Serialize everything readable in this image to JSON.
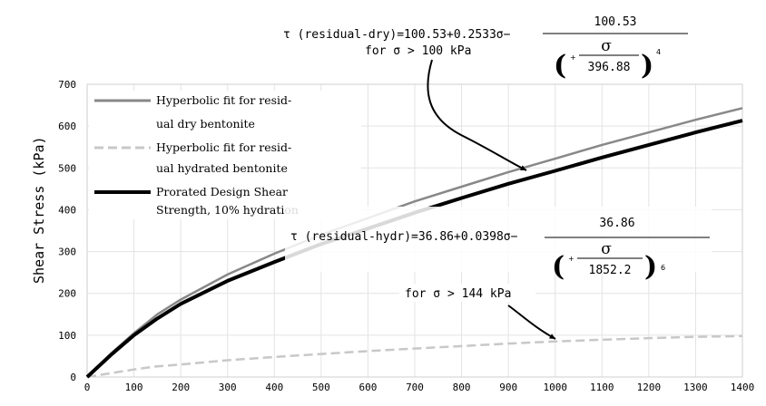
{
  "chart_data": {
    "type": "line",
    "title": "",
    "xlabel": "",
    "ylabel": "Shear Stress (kPa)",
    "xlim": [
      0,
      1400
    ],
    "ylim": [
      0,
      700
    ],
    "x_ticks": [
      "0",
      "100",
      "200",
      "300",
      "400",
      "500",
      "600",
      "700",
      "800",
      "900",
      "1000",
      "1100",
      "1200",
      "1300",
      "1400"
    ],
    "y_ticks": [
      "0",
      "100",
      "200",
      "300",
      "400",
      "500",
      "600",
      "700"
    ],
    "grid": true,
    "legend_position": "top-left",
    "legend": [
      "Hyperbolic fit for resid-",
      "ual dry bentonite",
      "Hyperbolic fit for resid-",
      "ual hydrated bentonite",
      "Prorated Design Shear",
      "Strength, 10% hydration"
    ],
    "series": [
      {
        "name": "Hyperbolic fit for residual dry bentonite",
        "color": "#888888",
        "style": "solid",
        "x": [
          0,
          50,
          100,
          150,
          200,
          300,
          400,
          500,
          600,
          700,
          800,
          900,
          1000,
          1100,
          1200,
          1300,
          1400
        ],
        "y": [
          0,
          55,
          105,
          150,
          185,
          245,
          295,
          340,
          380,
          420,
          455,
          490,
          522,
          555,
          585,
          615,
          643
        ]
      },
      {
        "name": "Hyperbolic fit for residual hydrated bentonite",
        "color": "#c8c8c8",
        "style": "dashed",
        "x": [
          0,
          100,
          144,
          200,
          300,
          400,
          500,
          600,
          700,
          800,
          900,
          1000,
          1100,
          1200,
          1300,
          1400
        ],
        "y": [
          0,
          18,
          25,
          30,
          40,
          48,
          55,
          62,
          68,
          74,
          80,
          85,
          89,
          93,
          96,
          98
        ]
      },
      {
        "name": "Prorated Design Shear Strength, 10% hydration",
        "color": "#000000",
        "style": "solid",
        "x": [
          0,
          50,
          100,
          150,
          200,
          300,
          400,
          500,
          600,
          700,
          800,
          900,
          1000,
          1100,
          1200,
          1300,
          1400
        ],
        "y": [
          0,
          52,
          100,
          140,
          175,
          230,
          275,
          318,
          355,
          393,
          428,
          462,
          493,
          525,
          555,
          585,
          613
        ]
      }
    ],
    "annotations": {
      "dry": {
        "equation_lhs": "τ (residual-dry)=100.53+0.2533σ−",
        "numerator": "100.53",
        "plus": "+",
        "sigma": "σ",
        "denominator": "396.88",
        "exponent": "4",
        "condition": "for σ > 100 kPa",
        "arrow_to": {
          "x": 950,
          "y": 485
        }
      },
      "hydr": {
        "equation_lhs": "τ (residual-hydr)=36.86+0.0398σ−",
        "numerator": "36.86",
        "plus": "+",
        "sigma": "σ",
        "denominator": "1852.2",
        "exponent": "6",
        "condition": "for σ > 144 kPa",
        "arrow_to": {
          "x": 1020,
          "y": 90
        }
      }
    }
  }
}
